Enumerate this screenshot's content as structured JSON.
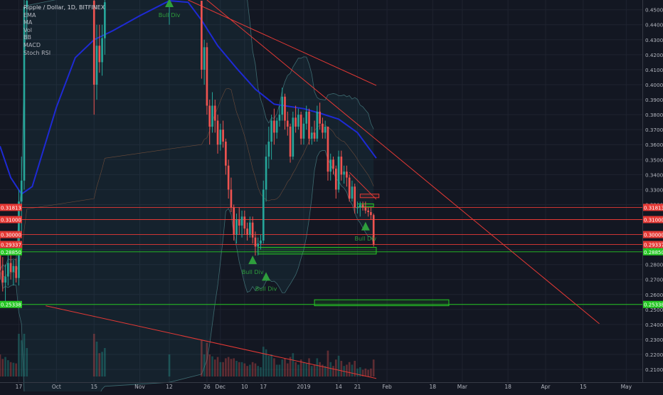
{
  "chart_data": {
    "type": "candlestick",
    "title": "Ripple / Dollar, 1D, BITFINEX",
    "indicators": [
      "EMA",
      "MA",
      "Vol",
      "BB",
      "MACD",
      "Stoch RSI"
    ],
    "ylim": [
      0.2015,
      0.4565
    ],
    "x_date_range": [
      "2018-09-10",
      "2019-05-07"
    ],
    "y_ticks": [
      0.45,
      0.44,
      0.43,
      0.42,
      0.41,
      0.4,
      0.39,
      0.38,
      0.37,
      0.36,
      0.35,
      0.34,
      0.33,
      0.32,
      0.31,
      0.3,
      0.29,
      0.28,
      0.27,
      0.26,
      0.25,
      0.24,
      0.23,
      0.22,
      0.21
    ],
    "y_tick_labels": [
      "0.45000",
      "0.44000",
      "0.43000",
      "0.42000",
      "0.41000",
      "0.40000",
      "0.39000",
      "0.38000",
      "0.37000",
      "0.36000",
      "0.35000",
      "0.34000",
      "0.33000",
      "0.32000",
      "0.31000",
      "0.30000",
      "0.29000",
      "0.28000",
      "0.27000",
      "0.26000",
      "0.25000",
      "0.24000",
      "0.23000",
      "0.22000",
      "0.21000"
    ],
    "x_ticks": [
      {
        "date": "2018-09-17",
        "label": "17"
      },
      {
        "date": "2018-10-01",
        "label": "Oct"
      },
      {
        "date": "2018-10-15",
        "label": "15"
      },
      {
        "date": "2018-11-01",
        "label": "Nov"
      },
      {
        "date": "2018-11-12",
        "label": "12"
      },
      {
        "date": "2018-11-26",
        "label": "26"
      },
      {
        "date": "2018-12-01",
        "label": "Dec"
      },
      {
        "date": "2018-12-10",
        "label": "10"
      },
      {
        "date": "2018-12-17",
        "label": "17"
      },
      {
        "date": "2019-01-01",
        "label": "2019"
      },
      {
        "date": "2019-01-14",
        "label": "14"
      },
      {
        "date": "2019-01-21",
        "label": "21"
      },
      {
        "date": "2019-02-01",
        "label": "Feb"
      },
      {
        "date": "2019-02-18",
        "label": "18"
      },
      {
        "date": "2019-03-01",
        "label": "Mar"
      },
      {
        "date": "2019-03-18",
        "label": "18"
      },
      {
        "date": "2019-04-01",
        "label": "Apr"
      },
      {
        "date": "2019-04-15",
        "label": "15"
      },
      {
        "date": "2019-05-01",
        "label": "May"
      }
    ],
    "price_levels": [
      {
        "value": 0.31813,
        "label": "0.31813",
        "color": "#e53935"
      },
      {
        "value": 0.31,
        "label": "0.31000",
        "color": "#e53935"
      },
      {
        "value": 0.3,
        "label": "0.30000",
        "color": "#e53935"
      },
      {
        "value": 0.29337,
        "label": "0.29337",
        "color": "#e53935"
      },
      {
        "value": 0.2885,
        "label": "0.28850",
        "color": "#26c824"
      },
      {
        "value": 0.25338,
        "label": "0.25338",
        "color": "#26c824"
      }
    ],
    "zones": [
      {
        "x0": "2018-12-15",
        "x1": "2019-01-28",
        "y0": 0.287,
        "y1": 0.2915,
        "color": "#26c824"
      },
      {
        "x0": "2019-01-05",
        "x1": "2019-02-24",
        "y0": 0.2525,
        "y1": 0.2565,
        "color": "#26c824"
      },
      {
        "x0": "2019-01-21",
        "x1": "2019-01-27",
        "y0": 0.3185,
        "y1": 0.3205,
        "color": "#26c824"
      },
      {
        "x0": "2019-01-22",
        "x1": "2019-01-29",
        "y0": 0.3246,
        "y1": 0.327,
        "color": "#e53935"
      }
    ],
    "trend_lines": [
      {
        "p1": [
          "2018-11-19",
          0.4565
        ],
        "p2": [
          "2019-01-28",
          0.3995
        ],
        "color": "#e53935"
      },
      {
        "p1": [
          "2018-11-26",
          0.4565
        ],
        "p2": [
          "2019-04-21",
          0.2405
        ],
        "color": "#e53935"
      },
      {
        "p1": [
          "2018-09-27",
          0.2525
        ],
        "p2": [
          "2019-01-28",
          0.204
        ],
        "color": "#e53935"
      },
      {
        "p1": [
          "2019-01-18",
          0.3415
        ],
        "p2": [
          "2019-01-28",
          0.3235
        ],
        "color": "#e53935"
      }
    ],
    "signals": [
      {
        "date": "2018-11-12",
        "price": 0.4565,
        "label": "Bull Div",
        "color": "#2e9e3c"
      },
      {
        "date": "2018-12-13",
        "price": 0.285,
        "label": "Bull Div",
        "color": "#2e9e3c"
      },
      {
        "date": "2018-12-18",
        "price": 0.274,
        "label": "Bull Div",
        "color": "#2e9e3c"
      },
      {
        "date": "2019-01-24",
        "price": 0.3075,
        "label": "Bull Div",
        "color": "#2e9e3c"
      }
    ],
    "ema": {
      "color": "#1e2ad4",
      "points": [
        [
          "2018-09-10",
          0.359
        ],
        [
          "2018-09-14",
          0.338
        ],
        [
          "2018-09-18",
          0.327
        ],
        [
          "2018-09-22",
          0.332
        ],
        [
          "2018-10-01",
          0.385
        ],
        [
          "2018-10-08",
          0.418
        ],
        [
          "2018-10-15",
          0.43
        ],
        [
          "2018-10-22",
          0.436
        ],
        [
          "2018-11-01",
          0.446
        ],
        [
          "2018-11-12",
          0.456
        ],
        [
          "2018-11-19",
          0.455
        ],
        [
          "2018-11-24",
          0.443
        ],
        [
          "2018-11-30",
          0.426
        ],
        [
          "2018-12-07",
          0.411
        ],
        [
          "2018-12-14",
          0.397
        ],
        [
          "2018-12-21",
          0.387
        ],
        [
          "2019-01-01",
          0.384
        ],
        [
          "2019-01-07",
          0.381
        ],
        [
          "2019-01-14",
          0.377
        ],
        [
          "2019-01-21",
          0.368
        ],
        [
          "2019-01-28",
          0.351
        ]
      ]
    },
    "candles": [
      [
        "2018-09-10",
        0.29,
        0.3,
        0.27,
        0.276
      ],
      [
        "2018-09-11",
        0.276,
        0.285,
        0.262,
        0.268
      ],
      [
        "2018-09-12",
        0.268,
        0.28,
        0.254,
        0.272
      ],
      [
        "2018-09-13",
        0.272,
        0.287,
        0.266,
        0.281
      ],
      [
        "2018-09-14",
        0.281,
        0.288,
        0.27,
        0.275
      ],
      [
        "2018-09-15",
        0.275,
        0.283,
        0.266,
        0.279
      ],
      [
        "2018-09-16",
        0.279,
        0.284,
        0.268,
        0.271
      ],
      [
        "2018-09-17",
        0.271,
        0.33,
        0.266,
        0.322
      ],
      [
        "2018-09-18",
        0.322,
        0.352,
        0.3,
        0.336
      ],
      [
        "2018-09-19",
        0.336,
        0.46,
        0.33,
        0.452
      ],
      [
        "2018-09-20",
        0.452,
        0.47,
        0.43,
        0.456
      ],
      [
        "2018-10-15",
        0.456,
        0.47,
        0.38,
        0.4
      ],
      [
        "2018-10-16",
        0.4,
        0.44,
        0.39,
        0.426
      ],
      [
        "2018-10-17",
        0.426,
        0.44,
        0.408,
        0.415
      ],
      [
        "2018-10-18",
        0.415,
        0.44,
        0.406,
        0.431
      ],
      [
        "2018-10-19",
        0.431,
        0.46,
        0.42,
        0.455
      ],
      [
        "2018-11-12",
        0.455,
        0.47,
        0.44,
        0.456
      ],
      [
        "2018-11-24",
        0.456,
        0.456,
        0.404,
        0.41
      ],
      [
        "2018-11-25",
        0.41,
        0.43,
        0.4,
        0.425
      ],
      [
        "2018-11-26",
        0.425,
        0.428,
        0.38,
        0.386
      ],
      [
        "2018-11-27",
        0.386,
        0.39,
        0.36,
        0.372
      ],
      [
        "2018-11-28",
        0.372,
        0.395,
        0.368,
        0.386
      ],
      [
        "2018-11-29",
        0.386,
        0.39,
        0.368,
        0.376
      ],
      [
        "2018-11-30",
        0.376,
        0.38,
        0.354,
        0.36
      ],
      [
        "2018-12-01",
        0.36,
        0.374,
        0.356,
        0.37
      ],
      [
        "2018-12-02",
        0.37,
        0.376,
        0.358,
        0.362
      ],
      [
        "2018-12-03",
        0.362,
        0.364,
        0.34,
        0.346
      ],
      [
        "2018-12-04",
        0.346,
        0.35,
        0.324,
        0.33
      ],
      [
        "2018-12-05",
        0.33,
        0.338,
        0.315,
        0.318
      ],
      [
        "2018-12-06",
        0.318,
        0.32,
        0.296,
        0.3
      ],
      [
        "2018-12-07",
        0.3,
        0.314,
        0.294,
        0.31
      ],
      [
        "2018-12-08",
        0.31,
        0.318,
        0.3,
        0.306
      ],
      [
        "2018-12-09",
        0.306,
        0.316,
        0.298,
        0.312
      ],
      [
        "2018-12-10",
        0.312,
        0.316,
        0.3,
        0.304
      ],
      [
        "2018-12-11",
        0.304,
        0.308,
        0.296,
        0.3
      ],
      [
        "2018-12-12",
        0.3,
        0.312,
        0.298,
        0.308
      ],
      [
        "2018-12-13",
        0.308,
        0.312,
        0.294,
        0.298
      ],
      [
        "2018-12-14",
        0.298,
        0.302,
        0.286,
        0.292
      ],
      [
        "2018-12-15",
        0.292,
        0.298,
        0.286,
        0.294
      ],
      [
        "2018-12-16",
        0.294,
        0.3,
        0.29,
        0.296
      ],
      [
        "2018-12-17",
        0.296,
        0.336,
        0.294,
        0.33
      ],
      [
        "2018-12-18",
        0.33,
        0.36,
        0.322,
        0.352
      ],
      [
        "2018-12-19",
        0.352,
        0.372,
        0.344,
        0.362
      ],
      [
        "2018-12-20",
        0.362,
        0.38,
        0.35,
        0.376
      ],
      [
        "2018-12-21",
        0.376,
        0.384,
        0.36,
        0.368
      ],
      [
        "2018-12-22",
        0.368,
        0.378,
        0.364,
        0.376
      ],
      [
        "2018-12-23",
        0.376,
        0.386,
        0.372,
        0.38
      ],
      [
        "2018-12-24",
        0.38,
        0.398,
        0.376,
        0.392
      ],
      [
        "2018-12-25",
        0.392,
        0.394,
        0.37,
        0.376
      ],
      [
        "2018-12-26",
        0.376,
        0.382,
        0.366,
        0.372
      ],
      [
        "2018-12-27",
        0.372,
        0.374,
        0.348,
        0.352
      ],
      [
        "2018-12-28",
        0.352,
        0.382,
        0.35,
        0.378
      ],
      [
        "2018-12-29",
        0.378,
        0.386,
        0.368,
        0.372
      ],
      [
        "2018-12-30",
        0.372,
        0.384,
        0.37,
        0.38
      ],
      [
        "2018-12-31",
        0.38,
        0.382,
        0.36,
        0.364
      ],
      [
        "2019-01-01",
        0.364,
        0.378,
        0.36,
        0.374
      ],
      [
        "2019-01-02",
        0.374,
        0.386,
        0.37,
        0.382
      ],
      [
        "2019-01-03",
        0.382,
        0.384,
        0.36,
        0.364
      ],
      [
        "2019-01-04",
        0.364,
        0.372,
        0.36,
        0.368
      ],
      [
        "2019-01-05",
        0.368,
        0.376,
        0.362,
        0.364
      ],
      [
        "2019-01-06",
        0.364,
        0.386,
        0.362,
        0.382
      ],
      [
        "2019-01-07",
        0.382,
        0.388,
        0.37,
        0.374
      ],
      [
        "2019-01-08",
        0.374,
        0.378,
        0.364,
        0.368
      ],
      [
        "2019-01-09",
        0.368,
        0.376,
        0.364,
        0.372
      ],
      [
        "2019-01-10",
        0.372,
        0.372,
        0.336,
        0.342
      ],
      [
        "2019-01-11",
        0.342,
        0.354,
        0.336,
        0.35
      ],
      [
        "2019-01-12",
        0.35,
        0.352,
        0.34,
        0.344
      ],
      [
        "2019-01-13",
        0.344,
        0.346,
        0.324,
        0.33
      ],
      [
        "2019-01-14",
        0.33,
        0.356,
        0.328,
        0.352
      ],
      [
        "2019-01-15",
        0.352,
        0.356,
        0.336,
        0.34
      ],
      [
        "2019-01-16",
        0.34,
        0.346,
        0.334,
        0.342
      ],
      [
        "2019-01-17",
        0.342,
        0.346,
        0.332,
        0.338
      ],
      [
        "2019-01-18",
        0.338,
        0.34,
        0.322,
        0.324
      ],
      [
        "2019-01-19",
        0.324,
        0.336,
        0.322,
        0.332
      ],
      [
        "2019-01-20",
        0.332,
        0.334,
        0.314,
        0.318
      ],
      [
        "2019-01-21",
        0.318,
        0.322,
        0.314,
        0.318
      ],
      [
        "2019-01-22",
        0.318,
        0.322,
        0.312,
        0.32
      ],
      [
        "2019-01-23",
        0.32,
        0.322,
        0.316,
        0.318
      ],
      [
        "2019-01-24",
        0.318,
        0.322,
        0.314,
        0.316
      ],
      [
        "2019-01-25",
        0.316,
        0.318,
        0.312,
        0.315
      ],
      [
        "2019-01-26",
        0.315,
        0.318,
        0.31,
        0.313
      ],
      [
        "2019-01-27",
        0.313,
        0.314,
        0.292,
        0.2934
      ]
    ]
  }
}
